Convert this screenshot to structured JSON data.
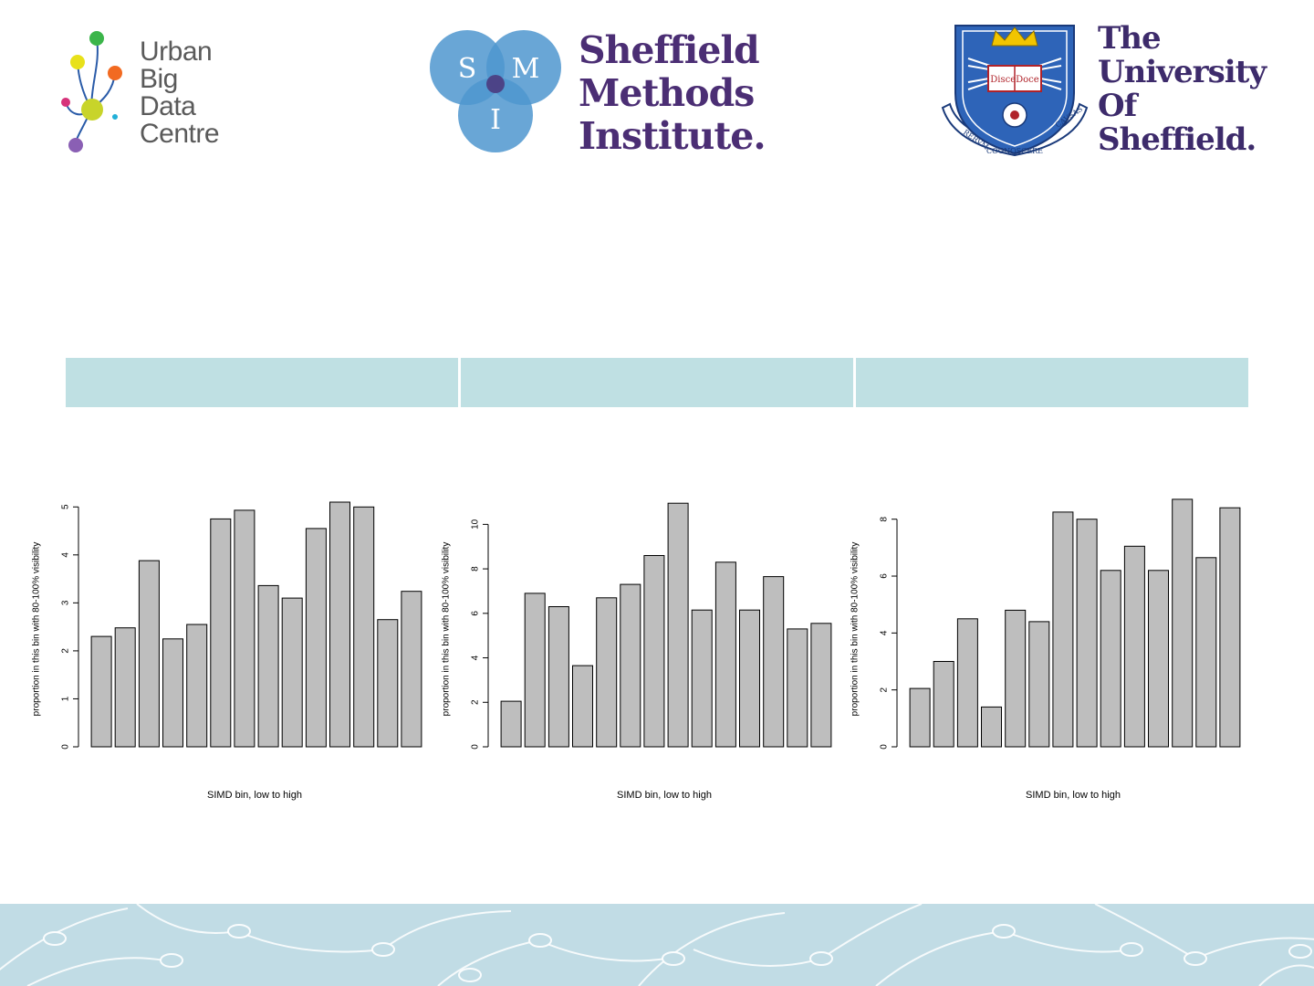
{
  "logos": {
    "ubdc": {
      "lines": [
        "Urban",
        "Big",
        "Data",
        "Centre"
      ]
    },
    "smi": {
      "circle_letters": [
        "S",
        "M",
        "I"
      ],
      "lines": [
        "Sheffield",
        "Methods",
        "Institute."
      ]
    },
    "tuos": {
      "lines": [
        "The",
        "University",
        "Of",
        "Sheffield."
      ],
      "crest_motto": [
        "DisceDoce",
        "RERVM",
        "COGNOSCERE",
        "CAVSAS"
      ]
    }
  },
  "header_table": {
    "cells": [
      "",
      "",
      ""
    ]
  },
  "colors": {
    "bar_fill": "#bebebe",
    "table_fill": "#bfe0e3",
    "footer_fill": "#c1dce5",
    "smi_circle": "#4f97cf",
    "smi_text": "#4b2e74"
  },
  "chart_data": [
    {
      "type": "bar",
      "xlabel": "SIMD bin, low to high",
      "ylabel": "proportion in this bin with 80-100% visibility",
      "ylim": [
        0,
        5.1
      ],
      "yticks": [
        0,
        1,
        2,
        3,
        4,
        5
      ],
      "values": [
        2.3,
        2.48,
        3.88,
        2.25,
        2.55,
        4.75,
        4.93,
        3.36,
        3.1,
        4.55,
        5.1,
        5.0,
        2.65,
        3.24
      ]
    },
    {
      "type": "bar",
      "xlabel": "SIMD bin, low to high",
      "ylabel": "proportion in this bin with 80-100% visibility",
      "ylim": [
        0,
        11
      ],
      "yticks": [
        0,
        2,
        4,
        6,
        8,
        10
      ],
      "values": [
        2.05,
        6.9,
        6.3,
        3.65,
        6.7,
        7.3,
        8.6,
        10.95,
        6.15,
        8.3,
        6.15,
        7.65,
        5.3,
        5.55
      ]
    },
    {
      "type": "bar",
      "xlabel": "SIMD bin, low to high",
      "ylabel": "proportion in this bin with 80-100% visibility",
      "ylim": [
        0,
        8.6
      ],
      "yticks": [
        0,
        2,
        4,
        6,
        8
      ],
      "values": [
        2.05,
        3.0,
        4.5,
        1.4,
        4.8,
        4.4,
        8.25,
        8.0,
        6.2,
        7.05,
        6.2,
        8.7,
        6.65,
        8.4
      ]
    }
  ]
}
